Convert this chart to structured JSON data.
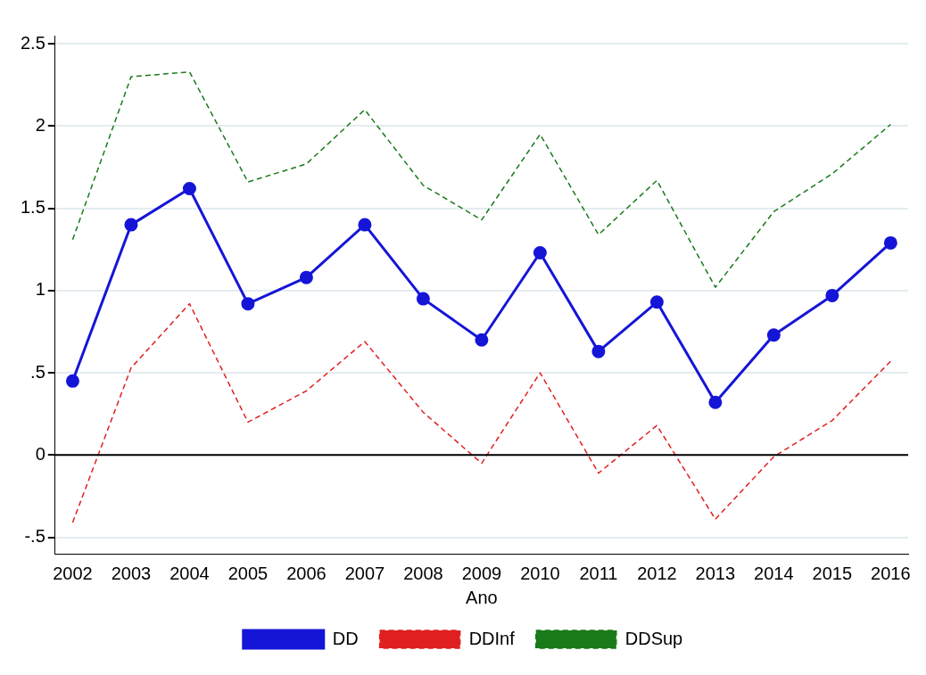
{
  "chart_data": {
    "type": "line",
    "xlabel": "Ano",
    "x": [
      2002,
      2003,
      2004,
      2005,
      2006,
      2007,
      2008,
      2009,
      2010,
      2011,
      2012,
      2013,
      2014,
      2015,
      2016
    ],
    "series": [
      {
        "name": "DD",
        "color": "#1515d8",
        "marker": "circle",
        "line_style": "solid",
        "values": [
          0.45,
          1.4,
          1.62,
          0.92,
          1.08,
          1.4,
          0.95,
          0.7,
          1.23,
          0.63,
          0.93,
          0.32,
          0.73,
          0.97,
          1.29
        ]
      },
      {
        "name": "DDInf",
        "color": "#e02020",
        "marker": "none",
        "line_style": "dashed",
        "values": [
          -0.41,
          0.53,
          0.92,
          0.2,
          0.39,
          0.69,
          0.26,
          -0.05,
          0.5,
          -0.11,
          0.18,
          -0.39,
          -0.01,
          0.21,
          0.57
        ]
      },
      {
        "name": "DDSup",
        "color": "#1a7a1a",
        "marker": "none",
        "line_style": "dashed",
        "values": [
          1.31,
          2.3,
          2.33,
          1.66,
          1.77,
          2.1,
          1.64,
          1.43,
          1.95,
          1.34,
          1.67,
          1.02,
          1.48,
          1.71,
          2.01
        ]
      }
    ],
    "xlim": [
      2001.7,
      2016.3
    ],
    "xticks": [
      2002,
      2003,
      2004,
      2005,
      2006,
      2007,
      2008,
      2009,
      2010,
      2011,
      2012,
      2013,
      2014,
      2015,
      2016
    ],
    "ylim": [
      -0.6,
      2.55
    ],
    "yticks": [
      {
        "value": -0.5,
        "label": "-.5"
      },
      0,
      {
        "value": 0.5,
        "label": ".5"
      },
      1,
      1.5,
      2,
      2.5
    ],
    "ref_lines": [
      {
        "axis": "y",
        "value": 0,
        "color": "#000000"
      }
    ],
    "grid": "y",
    "legend": "bottom"
  }
}
